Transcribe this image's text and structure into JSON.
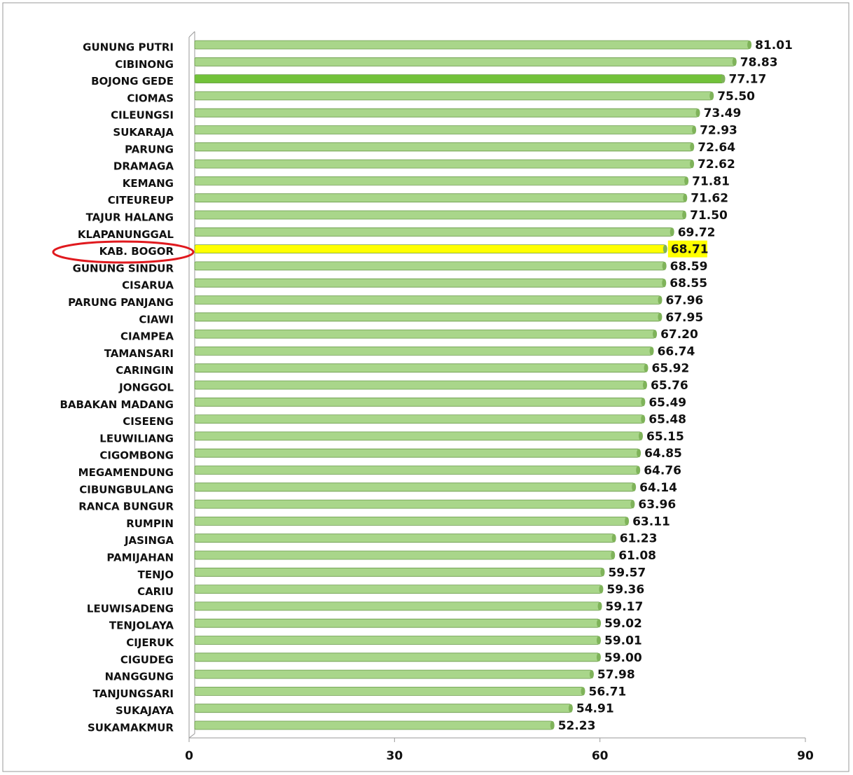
{
  "chart_data": {
    "type": "bar",
    "orientation": "horizontal",
    "categories": [
      "GUNUNG PUTRI",
      "CIBINONG",
      "BOJONG GEDE",
      "CIOMAS",
      "CILEUNGSI",
      "SUKARAJA",
      "PARUNG",
      "DRAMAGA",
      "KEMANG",
      "CITEUREUP",
      "TAJUR HALANG",
      "KLAPANUNGGAL",
      "KAB. BOGOR",
      "GUNUNG SINDUR",
      "CISARUA",
      "PARUNG PANJANG",
      "CIAWI",
      "CIAMPEA",
      "TAMANSARI",
      "CARINGIN",
      "JONGGOL",
      "BABAKAN MADANG",
      "CISEENG",
      "LEUWILIANG",
      "CIGOMBONG",
      "MEGAMENDUNG",
      "CIBUNGBULANG",
      "RANCA BUNGUR",
      "RUMPIN",
      "JASINGA",
      "PAMIJAHAN",
      "TENJO",
      "CARIU",
      "LEUWISADENG",
      "TENJOLAYA",
      "CIJERUK",
      "CIGUDEG",
      "NANGGUNG",
      "TANJUNGSARI",
      "SUKAJAYA",
      "SUKAMAKMUR"
    ],
    "values": [
      81.01,
      78.83,
      77.17,
      75.5,
      73.49,
      72.93,
      72.64,
      72.62,
      71.81,
      71.62,
      71.5,
      69.72,
      68.71,
      68.59,
      68.55,
      67.96,
      67.95,
      67.2,
      66.74,
      65.92,
      65.76,
      65.49,
      65.48,
      65.15,
      64.85,
      64.76,
      64.14,
      63.96,
      63.11,
      61.23,
      61.08,
      59.57,
      59.36,
      59.17,
      59.02,
      59.01,
      59.0,
      57.98,
      56.71,
      54.91,
      52.23
    ],
    "value_labels": [
      "81.01",
      "78.83",
      "77.17",
      "75.50",
      "73.49",
      "72.93",
      "72.64",
      "72.62",
      "71.81",
      "71.62",
      "71.50",
      "69.72",
      "68.71",
      "68.59",
      "68.55",
      "67.96",
      "67.95",
      "67.20",
      "66.74",
      "65.92",
      "65.76",
      "65.49",
      "65.48",
      "65.15",
      "64.85",
      "64.76",
      "64.14",
      "63.96",
      "63.11",
      "61.23",
      "61.08",
      "59.57",
      "59.36",
      "59.17",
      "59.02",
      "59.01",
      "59.00",
      "57.98",
      "56.71",
      "54.91",
      "52.23"
    ],
    "color": "#a9d68a",
    "colors": [
      "#a9d68a",
      "#a9d68a",
      "#72c23a",
      "#a9d68a",
      "#a9d68a",
      "#a9d68a",
      "#a9d68a",
      "#a9d68a",
      "#a9d68a",
      "#a9d68a",
      "#a9d68a",
      "#a9d68a",
      "#ffff00",
      "#a9d68a",
      "#a9d68a",
      "#a9d68a",
      "#a9d68a",
      "#a9d68a",
      "#a9d68a",
      "#a9d68a",
      "#a9d68a",
      "#a9d68a",
      "#a9d68a",
      "#a9d68a",
      "#a9d68a",
      "#a9d68a",
      "#a9d68a",
      "#a9d68a",
      "#a9d68a",
      "#a9d68a",
      "#a9d68a",
      "#a9d68a",
      "#a9d68a",
      "#a9d68a",
      "#a9d68a",
      "#a9d68a",
      "#a9d68a",
      "#a9d68a",
      "#a9d68a",
      "#a9d68a",
      "#a9d68a"
    ],
    "xlim": [
      0,
      90
    ],
    "xticks": [
      0,
      30,
      60,
      90
    ],
    "grid": false
  }
}
